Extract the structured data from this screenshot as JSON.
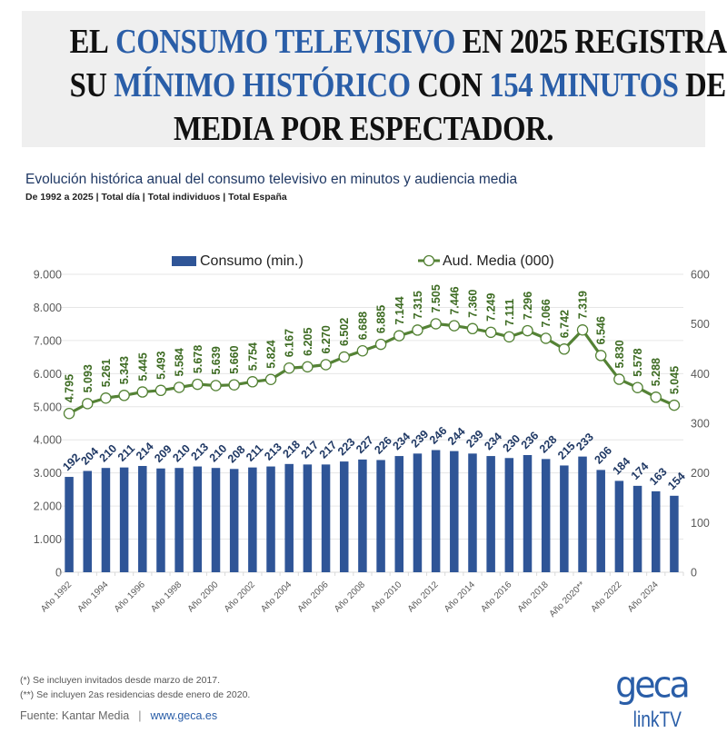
{
  "headline": {
    "lines": [
      [
        {
          "t": "EL ",
          "hl": false
        },
        {
          "t": "CONSUMO TELEVISIVO",
          "hl": true
        },
        {
          "t": " EN 2025 REGISTRA",
          "hl": false
        }
      ],
      [
        {
          "t": "SU ",
          "hl": false
        },
        {
          "t": "MÍNIMO HISTÓRICO",
          "hl": true
        },
        {
          "t": " CON ",
          "hl": false
        },
        {
          "t": "154 MINUTOS",
          "hl": true
        },
        {
          "t": " DE",
          "hl": false
        }
      ],
      [
        {
          "t": "MEDIA POR ESPECTADOR.",
          "hl": false
        }
      ]
    ]
  },
  "colors": {
    "accent": "#2a5ea8",
    "bar": "#2f5597",
    "line": "#548235",
    "line_label": "#3d6b22",
    "bar_label": "#1f3864",
    "grid": "#e6e6e6",
    "axis_text": "#595959"
  },
  "chart_data": {
    "type": "bar+line",
    "title": "Evolución histórica anual del consumo televisivo en minutos y audiencia media",
    "subtitle": "De 1992 a 2025 | Total día | Total individuos | Total España",
    "legend_position": "top-center",
    "grid": true,
    "categories": [
      "Año 1992",
      "Año 1993",
      "Año 1994",
      "Año 1995",
      "Año 1996",
      "Año 1997",
      "Año 1998",
      "Año 1999",
      "Año 2000",
      "Año 2001",
      "Año 2002",
      "Año 2003",
      "Año 2004",
      "Año 2005",
      "Año 2006",
      "Año 2007",
      "Año 2008",
      "Año 2009",
      "Año 2010",
      "Año 2011",
      "Año 2012",
      "Año 2013",
      "Año 2014",
      "Año 2015",
      "Año 2016",
      "Año 2017",
      "Año 2018",
      "Año 2019",
      "Año 2020**",
      "Año 2021",
      "Año 2022",
      "Año 2023",
      "Año 2024",
      "Año 2025"
    ],
    "visible_tick_labels": [
      "Año 1992",
      "Año 1994",
      "Año 1996",
      "Año 1998",
      "Año 2000",
      "Año 2002",
      "Año 2004",
      "Año 2006",
      "Año 2008",
      "Año 2010",
      "Año 2012",
      "Año 2014",
      "Año 2016",
      "Año 2018",
      "Año 2020**",
      "Año 2022",
      "Año 2024"
    ],
    "series": [
      {
        "name": "Consumo (min.)",
        "kind": "bar",
        "axis": "right",
        "values": [
          192,
          204,
          210,
          211,
          214,
          209,
          210,
          213,
          210,
          208,
          211,
          213,
          218,
          217,
          217,
          223,
          227,
          226,
          234,
          239,
          246,
          244,
          239,
          234,
          230,
          236,
          228,
          215,
          233,
          206,
          184,
          174,
          163,
          154
        ],
        "labels": [
          "192",
          "204",
          "210",
          "211",
          "214",
          "209",
          "210",
          "213",
          "210",
          "208",
          "211",
          "213",
          "218",
          "217",
          "217",
          "223",
          "227",
          "226",
          "234",
          "239",
          "246",
          "244",
          "239",
          "234",
          "230",
          "236",
          "228",
          "215",
          "233",
          "206",
          "184",
          "174",
          "163",
          "154"
        ]
      },
      {
        "name": "Aud. Media (000)",
        "kind": "line",
        "axis": "left",
        "values": [
          4795,
          5093,
          5261,
          5343,
          5445,
          5493,
          5584,
          5678,
          5639,
          5660,
          5754,
          5824,
          6167,
          6205,
          6270,
          6502,
          6688,
          6885,
          7144,
          7315,
          7505,
          7446,
          7360,
          7249,
          7111,
          7296,
          7066,
          6742,
          7319,
          6546,
          5830,
          5578,
          5288,
          5045
        ],
        "labels": [
          "4.795",
          "5.093",
          "5.261",
          "5.343",
          "5.445",
          "5.493",
          "5.584",
          "5.678",
          "5.639",
          "5.660",
          "5.754",
          "5.824",
          "6.167",
          "6.205",
          "6.270",
          "6.502",
          "6.688",
          "6.885",
          "7.144",
          "7.315",
          "7.505",
          "7.446",
          "7.360",
          "7.249",
          "7.111",
          "7.296",
          "7.066",
          "6.742",
          "7.319",
          "6.546",
          "5.830",
          "5.578",
          "5.288",
          "5.045"
        ]
      }
    ],
    "left_axis": {
      "range": [
        0,
        9000
      ],
      "ticks": [
        "0",
        "1.000",
        "2.000",
        "3.000",
        "4.000",
        "5.000",
        "6.000",
        "7.000",
        "8.000",
        "9.000"
      ]
    },
    "right_axis": {
      "range": [
        0,
        600
      ],
      "ticks": [
        "0",
        "100",
        "200",
        "300",
        "400",
        "500",
        "600"
      ]
    }
  },
  "footnotes": [
    "(*) Se incluyen invitados desde marzo de 2017.",
    "(**) Se incluyen 2as residencias desde enero de 2020."
  ],
  "source": {
    "label": "Fuente: Kantar Media",
    "separator": "|",
    "url": "www.geca.es"
  },
  "logo": {
    "text_top": "geca",
    "text_bottom": "linkTV"
  }
}
